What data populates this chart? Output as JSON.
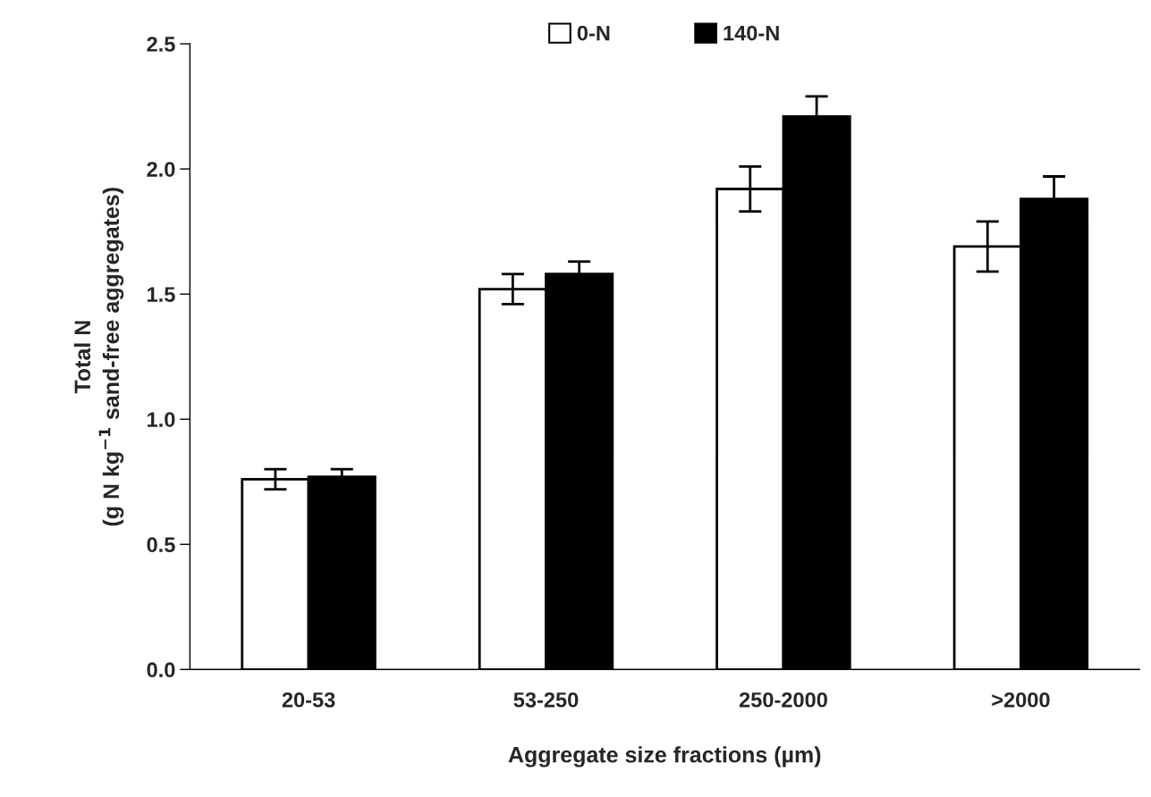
{
  "chart_data": {
    "type": "bar",
    "xlabel": "Aggregate size fractions (µm)",
    "ylabel": "Total N\n(g N kg$^{−1}$ sand-free aggregates)",
    "categories": [
      "20-53",
      "53-250",
      "250-2000",
      ">2000"
    ],
    "series": [
      {
        "name": "0-N",
        "color": "#ffffff",
        "values": [
          0.76,
          1.52,
          1.92,
          1.69
        ],
        "errors": [
          0.04,
          0.06,
          0.09,
          0.1
        ]
      },
      {
        "name": "140-N",
        "color": "#000000",
        "values": [
          0.77,
          1.58,
          2.21,
          1.88
        ],
        "errors": [
          0.03,
          0.05,
          0.08,
          0.09
        ]
      }
    ],
    "ylim": [
      0,
      2.5
    ],
    "yticks": [
      {
        "value": 0,
        "label": "0.0"
      },
      {
        "value": 0.5,
        "label": "0.5"
      },
      {
        "value": 1,
        "label": "1.0"
      },
      {
        "value": 1.5,
        "label": "1.5"
      },
      {
        "value": 2,
        "label": "2.0"
      },
      {
        "value": 2.5,
        "label": "2.5"
      }
    ],
    "grid": false,
    "legend": "top"
  }
}
